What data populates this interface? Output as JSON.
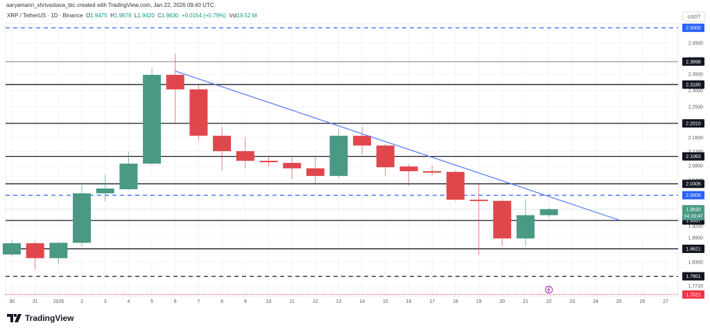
{
  "header": {
    "credit": "aaryamann_shrivastava_bic created with TradingView.com, Jan 22, 2026 09:40 UTC",
    "symbol": "XRP / TetherUS · 1D · Binance",
    "o_label": "O",
    "o": "1.9475",
    "h_label": "H",
    "h": "1.9679",
    "l_label": "L",
    "l": "1.9420",
    "c_label": "C",
    "c": "1.9630",
    "change": "+0.0154 (+0.79%)",
    "vol_label": "Vol",
    "vol": "19.52 M"
  },
  "logo": {
    "text": "TradingView"
  },
  "colors": {
    "up": "#4a9985",
    "down": "#e0474c",
    "trend": "#5b7cfa",
    "level": "#131722",
    "blue_level": "#2962ff",
    "red_level": "#f23645"
  },
  "chart_data": {
    "type": "candlestick",
    "scale": "log",
    "currency_label": "USDT",
    "ylim": [
      1.74,
      2.55
    ],
    "x_tick_labels": [
      "30",
      "31",
      "2026",
      "2",
      "3",
      "4",
      "5",
      "6",
      "7",
      "8",
      "9",
      "10",
      "11",
      "12",
      "13",
      "14",
      "15",
      "16",
      "17",
      "18",
      "19",
      "20",
      "21",
      "22",
      "23",
      "24",
      "25",
      "26",
      "27"
    ],
    "y_ticks": [
      "2.4500",
      "2.4000",
      "2.3500",
      "2.3000",
      "2.2500",
      "2.1600",
      "2.1200",
      "2.0800",
      "2.0400",
      "1.9200",
      "1.8900",
      "1.8300",
      "1.7720"
    ],
    "candles": [
      {
        "date": "Dec 30",
        "o": 1.848,
        "h": 1.884,
        "l": 1.843,
        "c": 1.876
      },
      {
        "date": "Dec 31",
        "o": 1.876,
        "h": 1.882,
        "l": 1.811,
        "c": 1.839
      },
      {
        "date": "Jan 1",
        "o": 1.839,
        "h": 1.879,
        "l": 1.824,
        "c": 1.877
      },
      {
        "date": "Jan 2",
        "o": 1.877,
        "h": 2.027,
        "l": 1.867,
        "c": 2.005
      },
      {
        "date": "Jan 3",
        "o": 2.005,
        "h": 2.055,
        "l": 1.983,
        "c": 2.018
      },
      {
        "date": "Jan 4",
        "o": 2.016,
        "h": 2.119,
        "l": 2.014,
        "c": 2.086
      },
      {
        "date": "Jan 5",
        "o": 2.086,
        "h": 2.368,
        "l": 2.082,
        "c": 2.348
      },
      {
        "date": "Jan 6",
        "o": 2.348,
        "h": 2.416,
        "l": 2.203,
        "c": 2.303
      },
      {
        "date": "Jan 7",
        "o": 2.303,
        "h": 2.318,
        "l": 2.151,
        "c": 2.165
      },
      {
        "date": "Jan 8",
        "o": 2.165,
        "h": 2.191,
        "l": 2.067,
        "c": 2.121
      },
      {
        "date": "Jan 9",
        "o": 2.121,
        "h": 2.161,
        "l": 2.073,
        "c": 2.094
      },
      {
        "date": "Jan 10",
        "o": 2.094,
        "h": 2.107,
        "l": 2.078,
        "c": 2.09
      },
      {
        "date": "Jan 11",
        "o": 2.088,
        "h": 2.107,
        "l": 2.044,
        "c": 2.073
      },
      {
        "date": "Jan 12",
        "o": 2.073,
        "h": 2.107,
        "l": 2.033,
        "c": 2.052
      },
      {
        "date": "Jan 13",
        "o": 2.052,
        "h": 2.185,
        "l": 2.046,
        "c": 2.165
      },
      {
        "date": "Jan 14",
        "o": 2.165,
        "h": 2.191,
        "l": 2.111,
        "c": 2.137
      },
      {
        "date": "Jan 15",
        "o": 2.137,
        "h": 2.141,
        "l": 2.052,
        "c": 2.076
      },
      {
        "date": "Jan 16",
        "o": 2.078,
        "h": 2.084,
        "l": 2.025,
        "c": 2.065
      },
      {
        "date": "Jan 17",
        "o": 2.065,
        "h": 2.08,
        "l": 2.054,
        "c": 2.061
      },
      {
        "date": "Jan 18",
        "o": 2.063,
        "h": 2.067,
        "l": 1.985,
        "c": 1.988
      },
      {
        "date": "Jan 19",
        "o": 1.988,
        "h": 2.029,
        "l": 1.846,
        "c": 1.985
      },
      {
        "date": "Jan 20",
        "o": 1.985,
        "h": 1.988,
        "l": 1.869,
        "c": 1.888
      },
      {
        "date": "Jan 21",
        "o": 1.888,
        "h": 1.988,
        "l": 1.869,
        "c": 1.9475
      },
      {
        "date": "Jan 22",
        "o": 1.9475,
        "h": 1.9679,
        "l": 1.942,
        "c": 1.963
      }
    ],
    "levels": [
      {
        "label": "2.5000",
        "price": 2.5,
        "style": "dashed",
        "color": "#2962ff"
      },
      {
        "label": "2.3898",
        "price": 2.3898,
        "style": "solid",
        "color": "#9e9e9e"
      },
      {
        "label": "2.3180",
        "price": 2.318,
        "style": "solid",
        "color": "#131722"
      },
      {
        "label": "2.2010",
        "price": 2.201,
        "style": "solid",
        "color": "#131722"
      },
      {
        "label": "2.1063",
        "price": 2.1063,
        "style": "solid",
        "color": "#131722"
      },
      {
        "label": "2.0306",
        "price": 2.0306,
        "style": "solid",
        "color": "#131722"
      },
      {
        "label": "2.0000",
        "price": 2.0,
        "style": "dashed",
        "color": "#2962ff"
      },
      {
        "label": "1.9337",
        "price": 1.9337,
        "style": "solid",
        "color": "#131722"
      },
      {
        "label": "1.8621",
        "price": 1.8621,
        "style": "solid",
        "color": "#131722"
      },
      {
        "label": "1.7951",
        "price": 1.7951,
        "style": "dashed",
        "color": "#131722"
      },
      {
        "label": "1.7521",
        "price": 1.7521,
        "style": "dotted",
        "color": "#f23645"
      }
    ],
    "trendline": {
      "from": {
        "date": "Jan 6",
        "price": 2.36
      },
      "to": {
        "date": "Jan 25",
        "price": 1.935
      }
    },
    "current_price": {
      "label": "1.9630",
      "countdown": "14:19:47",
      "price": 1.963,
      "color": "#4a9985"
    }
  }
}
